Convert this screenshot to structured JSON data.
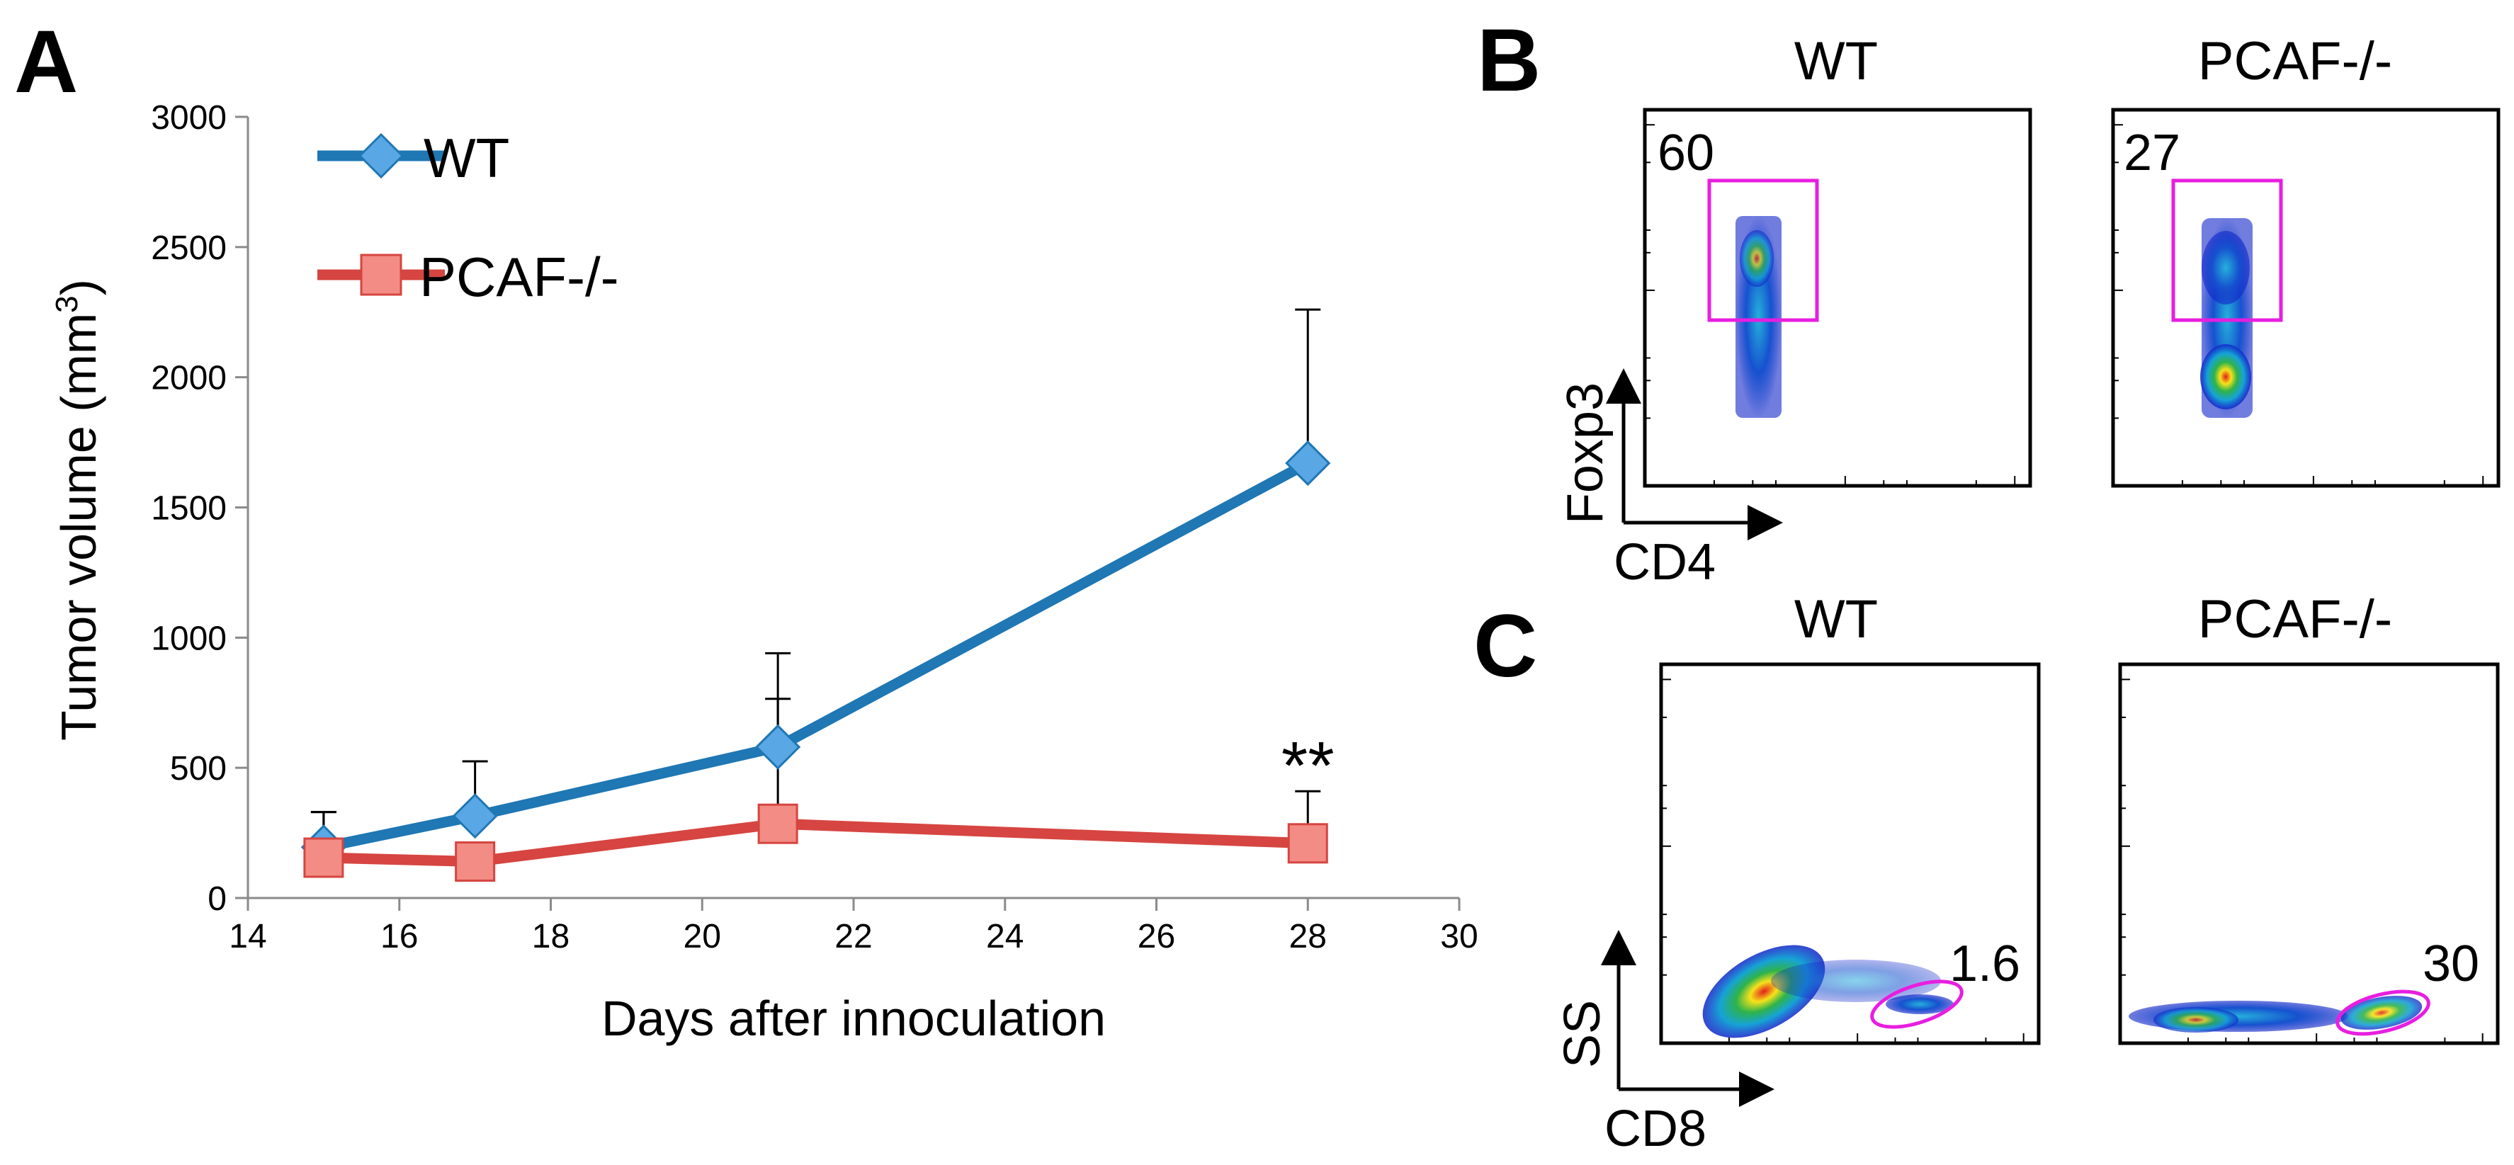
{
  "panel_labels": {
    "a": "A",
    "b": "B",
    "c": "C"
  },
  "chart_data": [
    {
      "id": "A",
      "type": "line",
      "title": "",
      "xlabel": "Days after innoculation",
      "ylabel_main": "Tumor volume (mm",
      "ylabel_sup": "3",
      "ylabel_close": ")",
      "xlim": [
        14,
        30
      ],
      "ylim": [
        0,
        3000
      ],
      "x_ticks": [
        14,
        16,
        18,
        20,
        22,
        24,
        26,
        28,
        30
      ],
      "y_ticks": [
        0,
        500,
        1000,
        1500,
        2000,
        2500,
        3000
      ],
      "legend_position": "top-left",
      "grid": false,
      "series": [
        {
          "name": "WT",
          "marker": "diamond",
          "color": "#1f77b4",
          "marker_color": "#5aa7e6",
          "x": [
            15,
            17,
            21,
            28
          ],
          "y": [
            195,
            315,
            580,
            1670
          ],
          "err_up": [
            135,
            210,
            360,
            590
          ]
        },
        {
          "name": "PCAF-/-",
          "marker": "square",
          "color": "#d64541",
          "marker_color": "#f28c84",
          "x": [
            15,
            17,
            21,
            28
          ],
          "y": [
            155,
            140,
            285,
            210
          ],
          "err_up": [
            175,
            0,
            480,
            200
          ]
        }
      ],
      "annotations": [
        {
          "text": "**",
          "x": 28,
          "y": 560
        }
      ]
    },
    {
      "id": "B",
      "type": "flow_cytometry",
      "x_axis_label": "CD4",
      "y_axis_label": "Foxp3",
      "plots": [
        {
          "title": "WT",
          "gate_percent": "60",
          "gate_shape": "rectangle"
        },
        {
          "title": "PCAF-/-",
          "gate_percent": "27",
          "gate_shape": "rectangle"
        }
      ]
    },
    {
      "id": "C",
      "type": "flow_cytometry",
      "x_axis_label": "CD8",
      "y_axis_label": "SS",
      "plots": [
        {
          "title": "WT",
          "gate_percent": "1.6",
          "gate_shape": "ellipse"
        },
        {
          "title": "PCAF-/-",
          "gate_percent": "30",
          "gate_shape": "ellipse"
        }
      ]
    }
  ],
  "colors": {
    "wt": "#1f77b4",
    "pcaf": "#d64541",
    "gate": "#e81ee0"
  }
}
